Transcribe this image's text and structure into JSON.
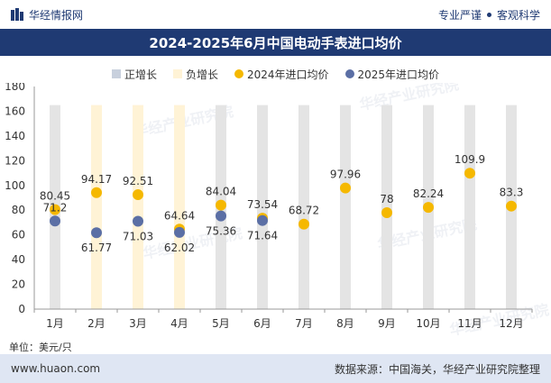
{
  "header": {
    "brand": "华经情报网",
    "tag_left": "专业严谨",
    "tag_right": "客观科学"
  },
  "title": "2024-2025年6月中国电动手表进口均价",
  "legend": {
    "positive": "正增长",
    "negative": "负增长",
    "series2024": "2024年进口均价",
    "series2025": "2025年进口均价"
  },
  "unit_label": "单位：美元/只",
  "footer": {
    "left": "www.huaon.com",
    "right": "数据来源：中国海关，华经产业研究院整理"
  },
  "watermark": "华经产业研究院",
  "colors": {
    "brand": "#1f3a73",
    "positive_bar": "#e4e4e4",
    "negative_bar": "#fff3d6",
    "series2024": "#f5b800",
    "series2025": "#5b6fa5"
  },
  "chart_data": {
    "type": "bar+scatter",
    "categories": [
      "1月",
      "2月",
      "3月",
      "4月",
      "5月",
      "6月",
      "7月",
      "8月",
      "9月",
      "10月",
      "11月",
      "12月"
    ],
    "ylim": [
      0,
      180
    ],
    "yticks": [
      0,
      20,
      40,
      60,
      80,
      100,
      120,
      140,
      160,
      180
    ],
    "background_bars": [
      "positive",
      "negative",
      "negative",
      "negative",
      "positive",
      "positive",
      "positive",
      "positive",
      "positive",
      "positive",
      "positive",
      "positive"
    ],
    "series": [
      {
        "name": "2024年进口均价",
        "values": [
          80.45,
          94.17,
          92.51,
          64.64,
          84.04,
          73.54,
          68.72,
          97.96,
          78,
          82.24,
          109.9,
          83.3
        ],
        "labels": [
          "80.45",
          "94.17",
          "92.51",
          "64.64",
          "84.04",
          "73.54",
          "68.72",
          "97.96",
          "78",
          "82.24",
          "109.9",
          "83.3"
        ]
      },
      {
        "name": "2025年进口均价",
        "values": [
          71.2,
          61.77,
          71.03,
          62.02,
          75.36,
          71.64,
          null,
          null,
          null,
          null,
          null,
          null
        ],
        "labels": [
          "71.2",
          "61.77",
          "71.03",
          "62.02",
          "75.36",
          "71.64",
          "",
          "",
          "",
          "",
          "",
          ""
        ]
      }
    ]
  }
}
